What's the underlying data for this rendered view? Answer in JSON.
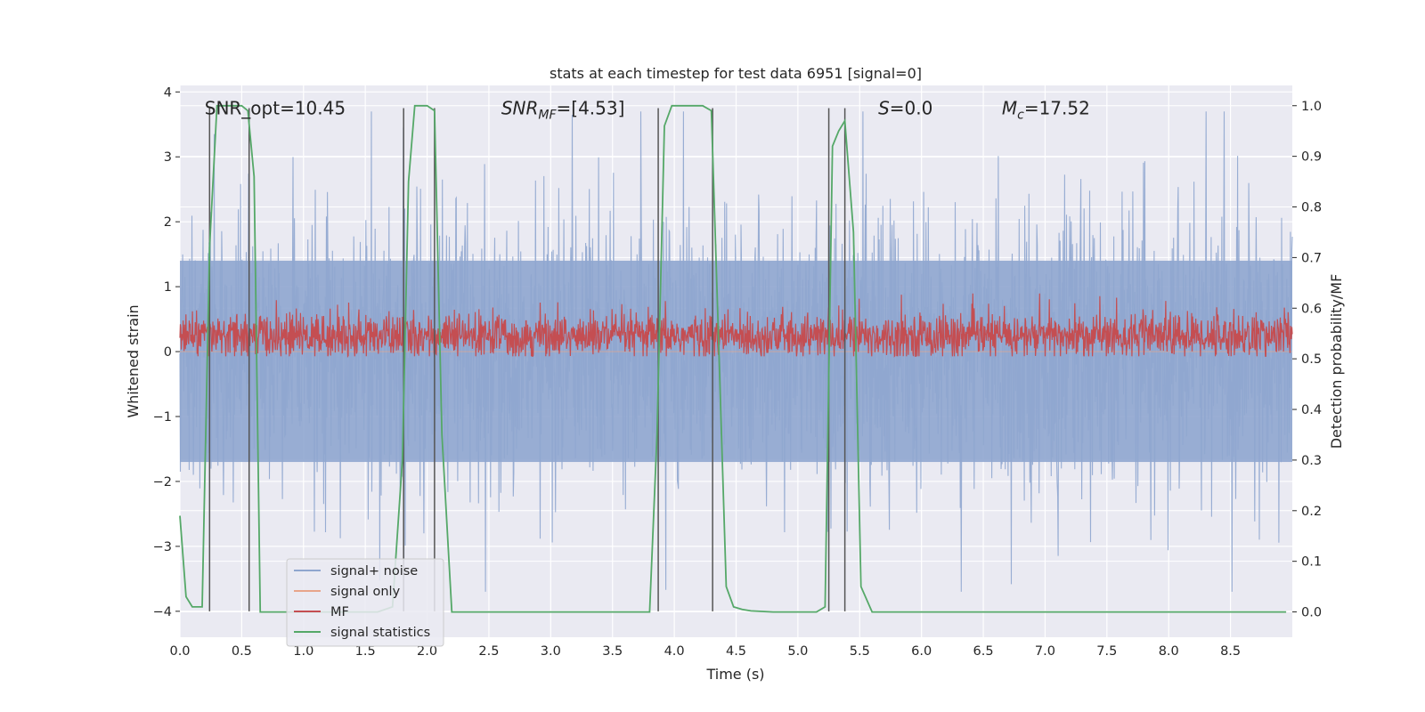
{
  "chart_data": {
    "type": "line",
    "title": "stats at each timestep for test data 6951 [signal=0]",
    "xlabel": "Time (s)",
    "ylabel": "Whitened strain",
    "y2label": "Detection probability/MF",
    "xlim": [
      0.0,
      9.0
    ],
    "ylim": [
      -4.4,
      4.1
    ],
    "y2lim": [
      -0.05,
      1.04
    ],
    "xticks": [
      "0.0",
      "0.5",
      "1.0",
      "1.5",
      "2.0",
      "2.5",
      "3.0",
      "3.5",
      "4.0",
      "4.5",
      "5.0",
      "5.5",
      "6.0",
      "6.5",
      "7.0",
      "7.5",
      "8.0",
      "8.5"
    ],
    "yticks": [
      "4",
      "3",
      "2",
      "1",
      "0",
      "−1",
      "−2",
      "−3",
      "−4"
    ],
    "y2ticks": [
      "1.0",
      "0.9",
      "0.8",
      "0.7",
      "0.6",
      "0.5",
      "0.4",
      "0.3",
      "0.2",
      "0.1",
      "0.0"
    ],
    "grid": true,
    "legend_placement": "lower-left",
    "annotations": [
      {
        "text": "SNR_opt=10.45",
        "x": 0.2,
        "y": 3.75
      },
      {
        "text": "SNR_MF=[4.53]",
        "x": 2.6,
        "y": 3.75
      },
      {
        "text": "S=0.0",
        "x": 5.65,
        "y": 3.75
      },
      {
        "text": "M_c=17.52",
        "x": 6.65,
        "y": 3.75
      }
    ],
    "vlines": [
      0.24,
      0.56,
      1.81,
      2.06,
      3.87,
      4.31,
      5.25,
      5.38
    ],
    "series": [
      {
        "name": "signal+ noise",
        "color": "#8fa6cf",
        "axis": "left",
        "description": "whitened strain noise, approx. symmetric around 0, extremes about ±3.7",
        "envelope": {
          "inner": [
            -1.7,
            1.4
          ],
          "typical_peak": 2.4,
          "max_peak": 3.7
        }
      },
      {
        "name": "signal only",
        "color": "#e8a58a",
        "axis": "left",
        "x": [
          0.0,
          9.0
        ],
        "y": [
          0.0,
          0.0
        ]
      },
      {
        "name": "MF",
        "color": "#c44e52",
        "axis": "right",
        "description": "matched filter output fluctuating around ~0.54 on right axis",
        "envelope": {
          "low": 0.5,
          "high": 0.62,
          "max_peak": 0.66
        }
      },
      {
        "name": "signal statistics",
        "color": "#55a868",
        "axis": "right",
        "x": [
          0.0,
          0.05,
          0.1,
          0.18,
          0.24,
          0.3,
          0.36,
          0.42,
          0.5,
          0.55,
          0.6,
          0.65,
          0.7,
          0.8,
          1.2,
          1.6,
          1.72,
          1.8,
          1.85,
          1.9,
          1.95,
          2.0,
          2.06,
          2.12,
          2.2,
          2.4,
          3.0,
          3.5,
          3.8,
          3.86,
          3.92,
          3.98,
          4.05,
          4.15,
          4.23,
          4.3,
          4.35,
          4.42,
          4.48,
          4.55,
          4.62,
          4.8,
          5.0,
          5.15,
          5.22,
          5.28,
          5.33,
          5.38,
          5.45,
          5.51,
          5.6,
          5.8,
          6.5,
          7.5,
          8.5,
          8.95
        ],
        "y": [
          0.19,
          0.03,
          0.01,
          0.01,
          0.72,
          1.0,
          1.0,
          1.0,
          1.0,
          0.99,
          0.86,
          0.0,
          0.0,
          0.0,
          0.0,
          0.0,
          0.01,
          0.3,
          0.85,
          1.0,
          1.0,
          1.0,
          0.99,
          0.35,
          0.0,
          0.0,
          0.0,
          0.0,
          0.0,
          0.35,
          0.96,
          1.0,
          1.0,
          1.0,
          1.0,
          0.99,
          0.6,
          0.05,
          0.01,
          0.005,
          0.002,
          0.0,
          0.0,
          0.0,
          0.01,
          0.92,
          0.95,
          0.97,
          0.75,
          0.05,
          0.0,
          0.0,
          0.0,
          0.0,
          0.0,
          0.0
        ]
      }
    ]
  }
}
